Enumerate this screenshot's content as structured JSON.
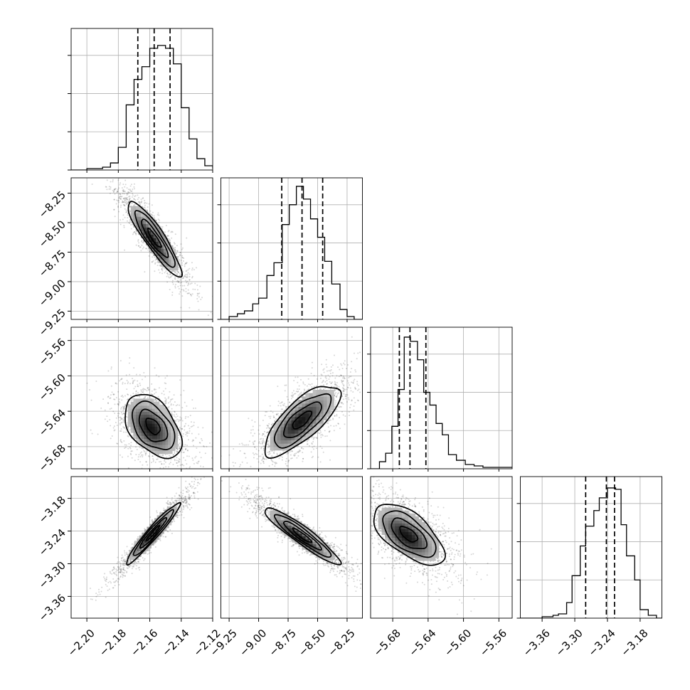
{
  "chart_data": {
    "type": "corner",
    "grid": true,
    "parameters": [
      {
        "range": [
          -2.21,
          -2.12
        ],
        "ticks": [
          -2.2,
          -2.18,
          -2.16,
          -2.14,
          -2.12
        ],
        "tick_labels": [
          "−2.20",
          "−2.18",
          "−2.16",
          "−2.14",
          "−2.12"
        ],
        "quantiles": [
          -2.1676,
          -2.1572,
          -2.1471
        ],
        "hist": [
          [
            -2.21,
            0.0
          ],
          [
            -2.2,
            0.01
          ],
          [
            -2.19,
            0.02
          ],
          [
            -2.185,
            0.05
          ],
          [
            -2.18,
            0.16
          ],
          [
            -2.175,
            0.46
          ],
          [
            -2.17,
            0.64
          ],
          [
            -2.165,
            0.73
          ],
          [
            -2.16,
            0.86
          ],
          [
            -2.155,
            0.88
          ],
          [
            -2.15,
            0.86
          ],
          [
            -2.145,
            0.75
          ],
          [
            -2.14,
            0.44
          ],
          [
            -2.135,
            0.22
          ],
          [
            -2.13,
            0.08
          ],
          [
            -2.125,
            0.03
          ],
          [
            -2.12,
            0.01
          ]
        ]
      },
      {
        "range": [
          -9.32,
          -8.12
        ],
        "ticks": [
          -9.25,
          -9.0,
          -8.75,
          -8.5,
          -8.25
        ],
        "tick_labels": [
          "−9.25",
          "−9.00",
          "−8.75",
          "−8.50",
          "−8.25"
        ],
        "quantiles": [
          -8.804,
          -8.632,
          -8.457
        ],
        "hist": [
          [
            -9.32,
            0.0
          ],
          [
            -9.25,
            0.02
          ],
          [
            -9.18,
            0.04
          ],
          [
            -9.12,
            0.06
          ],
          [
            -9.05,
            0.11
          ],
          [
            -9.0,
            0.15
          ],
          [
            -8.93,
            0.31
          ],
          [
            -8.87,
            0.4
          ],
          [
            -8.8,
            0.67
          ],
          [
            -8.74,
            0.81
          ],
          [
            -8.68,
            0.94
          ],
          [
            -8.62,
            0.85
          ],
          [
            -8.56,
            0.71
          ],
          [
            -8.5,
            0.58
          ],
          [
            -8.44,
            0.41
          ],
          [
            -8.38,
            0.25
          ],
          [
            -8.31,
            0.07
          ],
          [
            -8.25,
            0.02
          ],
          [
            -8.19,
            0.0
          ]
        ]
      },
      {
        "range": [
          -5.705,
          -5.545
        ],
        "ticks": [
          -5.68,
          -5.64,
          -5.6,
          -5.56
        ],
        "tick_labels": [
          "−5.68",
          "−5.64",
          "−5.60",
          "−5.56"
        ],
        "quantiles": [
          -5.6725,
          -5.6605,
          -5.6425
        ],
        "hist": [
          [
            -5.705,
            0.0
          ],
          [
            -5.695,
            0.05
          ],
          [
            -5.688,
            0.11
          ],
          [
            -5.681,
            0.3
          ],
          [
            -5.674,
            0.56
          ],
          [
            -5.667,
            0.93
          ],
          [
            -5.66,
            0.9
          ],
          [
            -5.652,
            0.77
          ],
          [
            -5.645,
            0.54
          ],
          [
            -5.638,
            0.45
          ],
          [
            -5.631,
            0.32
          ],
          [
            -5.624,
            0.24
          ],
          [
            -5.617,
            0.1
          ],
          [
            -5.608,
            0.06
          ],
          [
            -5.598,
            0.03
          ],
          [
            -5.588,
            0.02
          ],
          [
            -5.578,
            0.01
          ]
        ]
      },
      {
        "range": [
          -3.4,
          -3.14
        ],
        "ticks": [
          -3.36,
          -3.3,
          -3.24,
          -3.18
        ],
        "tick_labels": [
          "−3.36",
          "−3.30",
          "−3.24",
          "−3.18"
        ],
        "quantiles": [
          -3.28,
          -3.242,
          -3.227
        ],
        "hist": [
          [
            -3.4,
            0.0
          ],
          [
            -3.36,
            0.01
          ],
          [
            -3.34,
            0.02
          ],
          [
            -3.33,
            0.03
          ],
          [
            -3.315,
            0.11
          ],
          [
            -3.305,
            0.3
          ],
          [
            -3.29,
            0.51
          ],
          [
            -3.28,
            0.65
          ],
          [
            -3.265,
            0.76
          ],
          [
            -3.255,
            0.85
          ],
          [
            -3.24,
            0.92
          ],
          [
            -3.225,
            0.91
          ],
          [
            -3.215,
            0.66
          ],
          [
            -3.205,
            0.44
          ],
          [
            -3.19,
            0.27
          ],
          [
            -3.18,
            0.06
          ],
          [
            -3.165,
            0.02
          ],
          [
            -3.15,
            0.0
          ]
        ]
      }
    ],
    "pairs": [
      {
        "row": 1,
        "col": 0,
        "center": [
          -2.157,
          -8.632
        ],
        "sd": [
          0.0085,
          0.16
        ],
        "rho": -0.9
      },
      {
        "row": 2,
        "col": 0,
        "center": [
          -2.158,
          -5.657
        ],
        "sd": [
          0.009,
          0.018
        ],
        "rho": -0.45
      },
      {
        "row": 2,
        "col": 1,
        "center": [
          -8.632,
          -5.65
        ],
        "sd": [
          0.16,
          0.02
        ],
        "rho": 0.75
      },
      {
        "row": 3,
        "col": 0,
        "center": [
          -2.158,
          -3.244
        ],
        "sd": [
          0.0085,
          0.028
        ],
        "rho": 0.96
      },
      {
        "row": 3,
        "col": 1,
        "center": [
          -8.632,
          -3.248
        ],
        "sd": [
          0.16,
          0.026
        ],
        "rho": -0.93
      },
      {
        "row": 3,
        "col": 2,
        "center": [
          -5.662,
          -3.246
        ],
        "sd": [
          0.02,
          0.028
        ],
        "rho": -0.62
      }
    ]
  }
}
